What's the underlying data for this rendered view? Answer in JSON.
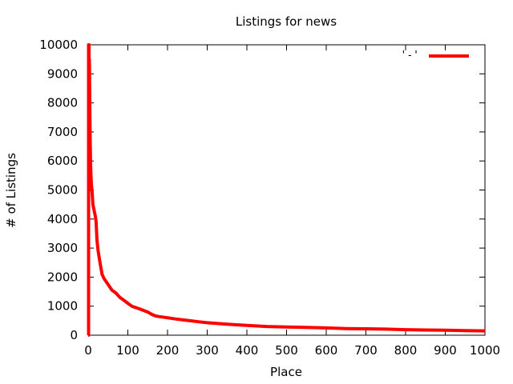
{
  "chart_data": {
    "type": "line",
    "title": "Listings for news",
    "xlabel": "Place",
    "ylabel": "# of Listings",
    "xlim": [
      0,
      1000
    ],
    "ylim": [
      0,
      10000
    ],
    "xticks": [
      0,
      100,
      200,
      300,
      400,
      500,
      600,
      700,
      800,
      900,
      1000
    ],
    "yticks": [
      0,
      1000,
      2000,
      3000,
      4000,
      5000,
      6000,
      7000,
      8000,
      9000,
      10000
    ],
    "grid": false,
    "legend": {
      "position": "top-right",
      "label": "'-'"
    },
    "series": [
      {
        "color": "#ff0000",
        "x": [
          0,
          1,
          1,
          2,
          2,
          3,
          4,
          5,
          6,
          7,
          8,
          10,
          12,
          15,
          18,
          20,
          22,
          25,
          28,
          30,
          35,
          40,
          45,
          50,
          55,
          60,
          70,
          80,
          90,
          100,
          110,
          120,
          130,
          140,
          150,
          160,
          170,
          180,
          200,
          220,
          250,
          280,
          300,
          350,
          400,
          450,
          500,
          550,
          600,
          650,
          700,
          750,
          800,
          850,
          900,
          950,
          1000
        ],
        "y": [
          0,
          0,
          10000,
          10000,
          5000,
          9500,
          8000,
          6700,
          5900,
          5500,
          5200,
          4900,
          4500,
          4300,
          4100,
          3900,
          3300,
          2900,
          2650,
          2500,
          2100,
          1950,
          1850,
          1750,
          1650,
          1550,
          1450,
          1300,
          1200,
          1100,
          1000,
          950,
          900,
          850,
          800,
          720,
          660,
          640,
          600,
          560,
          510,
          460,
          430,
          380,
          340,
          300,
          280,
          270,
          250,
          230,
          220,
          210,
          190,
          180,
          170,
          160,
          150
        ]
      }
    ]
  }
}
